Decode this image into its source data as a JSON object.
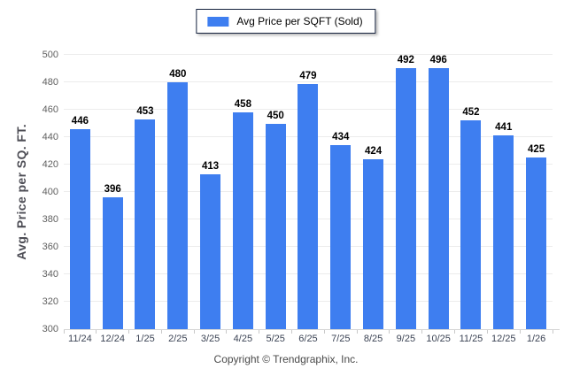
{
  "legend": {
    "label": "Avg Price per SQFT (Sold)"
  },
  "footer": {
    "copyright": "Copyright © Trendgraphix, Inc."
  },
  "colors": {
    "bar": "#3e7ef0",
    "grid": "#ececec",
    "axis_line": "#d6d6d6",
    "value_label": "#000000",
    "x_tick_label": "#3c4455",
    "y_tick_label": "#606060",
    "axis_title": "#4d4d55",
    "legend_border": "#16233f",
    "footer_text": "#4a4a4a"
  },
  "chart_data": {
    "type": "bar",
    "title": "Avg Price per SQFT (Sold)",
    "categories": [
      "11/24",
      "12/24",
      "1/25",
      "2/25",
      "3/25",
      "4/25",
      "5/25",
      "6/25",
      "7/25",
      "8/25",
      "9/25",
      "10/25",
      "11/25",
      "12/25",
      "1/26"
    ],
    "values": [
      446,
      396,
      453,
      480,
      413,
      458,
      450,
      479,
      434,
      424,
      492,
      496,
      452,
      441,
      425
    ],
    "xlabel": "",
    "ylabel": "Avg. Price per SQ. FT.",
    "ylim": [
      300,
      500
    ],
    "ytick_step": 20,
    "grid": "horizontal",
    "legend_position": "top-center",
    "bar_value_labels": true
  }
}
